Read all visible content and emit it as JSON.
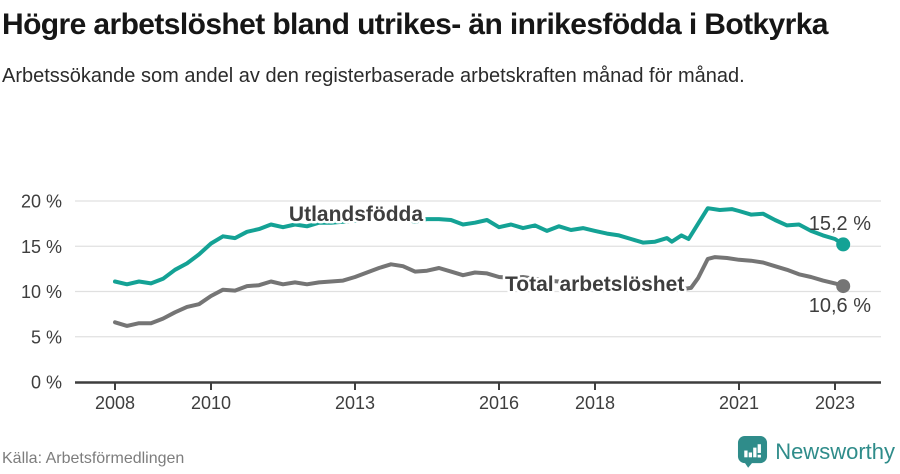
{
  "header": {
    "title": "Högre arbetslöshet bland utrikes- än inrikesfödda i Botkyrka",
    "subtitle": "Arbetssökande som andel av den registerbaserade arbetskraften månad för månad."
  },
  "footer": {
    "source": "Källa: Arbetsförmedlingen",
    "brand": "Newsworthy"
  },
  "colors": {
    "accent_teal": "#14a295",
    "series_gray": "#757575",
    "brand_teal": "#2f8c8a",
    "grid": "#e0e0e0",
    "axis": "#3e3e3e",
    "end_label_text": "#2e2e2e"
  },
  "chart_data": {
    "type": "line",
    "title": "Högre arbetslöshet bland utrikes- än inrikesfödda i Botkyrka",
    "subtitle": "Arbetssökande som andel av den registerbaserade arbetskraften månad för månad.",
    "source": "Källa: Arbetsförmedlingen",
    "x_unit": "decimal_year (monthly observations 2008 – early 2023)",
    "xlabel": "",
    "ylabel": "",
    "xlim": [
      2007.17,
      2023.94
    ],
    "ylim": [
      0,
      21.5
    ],
    "grid": "horizontal",
    "legend_position": "inline-labels",
    "x_ticks": [
      2008,
      2010,
      2013,
      2016,
      2018,
      2021,
      2023
    ],
    "y_ticks": [
      0,
      5,
      10,
      15,
      20
    ],
    "y_tick_labels": [
      "0 %",
      "5 %",
      "10 %",
      "15 %",
      "20 %"
    ],
    "series": [
      {
        "name": "Utlandsfödda",
        "color": "#14a295",
        "end_label": "15,2 %",
        "end_value": 15.2,
        "points": [
          [
            2008.0,
            11.1
          ],
          [
            2008.25,
            10.8
          ],
          [
            2008.5,
            11.1
          ],
          [
            2008.75,
            10.9
          ],
          [
            2009.0,
            11.4
          ],
          [
            2009.25,
            12.4
          ],
          [
            2009.5,
            13.1
          ],
          [
            2009.75,
            14.1
          ],
          [
            2010.0,
            15.3
          ],
          [
            2010.25,
            16.1
          ],
          [
            2010.5,
            15.9
          ],
          [
            2010.75,
            16.6
          ],
          [
            2011.0,
            16.9
          ],
          [
            2011.25,
            17.4
          ],
          [
            2011.5,
            17.1
          ],
          [
            2011.75,
            17.4
          ],
          [
            2012.0,
            17.2
          ],
          [
            2012.25,
            17.6
          ],
          [
            2012.5,
            17.6
          ],
          [
            2012.75,
            17.7
          ],
          [
            2013.0,
            17.8
          ],
          [
            2013.25,
            18.0
          ],
          [
            2013.5,
            18.2
          ],
          [
            2013.75,
            18.5
          ],
          [
            2014.0,
            18.1
          ],
          [
            2014.25,
            17.7
          ],
          [
            2014.5,
            18.0
          ],
          [
            2014.75,
            18.0
          ],
          [
            2015.0,
            17.9
          ],
          [
            2015.25,
            17.4
          ],
          [
            2015.5,
            17.6
          ],
          [
            2015.75,
            17.9
          ],
          [
            2016.0,
            17.1
          ],
          [
            2016.25,
            17.4
          ],
          [
            2016.5,
            17.0
          ],
          [
            2016.75,
            17.3
          ],
          [
            2017.0,
            16.7
          ],
          [
            2017.25,
            17.2
          ],
          [
            2017.5,
            16.8
          ],
          [
            2017.75,
            17.0
          ],
          [
            2018.0,
            16.7
          ],
          [
            2018.25,
            16.4
          ],
          [
            2018.5,
            16.2
          ],
          [
            2018.75,
            15.8
          ],
          [
            2019.0,
            15.4
          ],
          [
            2019.25,
            15.5
          ],
          [
            2019.5,
            15.9
          ],
          [
            2019.6,
            15.5
          ],
          [
            2019.8,
            16.2
          ],
          [
            2019.95,
            15.8
          ],
          [
            2020.15,
            17.5
          ],
          [
            2020.35,
            19.2
          ],
          [
            2020.6,
            19.0
          ],
          [
            2020.85,
            19.1
          ],
          [
            2021.0,
            18.9
          ],
          [
            2021.25,
            18.5
          ],
          [
            2021.5,
            18.6
          ],
          [
            2021.75,
            17.9
          ],
          [
            2022.0,
            17.3
          ],
          [
            2022.25,
            17.4
          ],
          [
            2022.5,
            16.7
          ],
          [
            2022.75,
            16.2
          ],
          [
            2023.0,
            15.8
          ],
          [
            2023.17,
            15.2
          ]
        ]
      },
      {
        "name": "Total arbetslöshet",
        "color": "#757575",
        "end_label": "10,6 %",
        "end_value": 10.6,
        "points": [
          [
            2008.0,
            6.6
          ],
          [
            2008.25,
            6.2
          ],
          [
            2008.5,
            6.5
          ],
          [
            2008.75,
            6.5
          ],
          [
            2009.0,
            7.0
          ],
          [
            2009.25,
            7.7
          ],
          [
            2009.5,
            8.3
          ],
          [
            2009.75,
            8.6
          ],
          [
            2010.0,
            9.5
          ],
          [
            2010.25,
            10.2
          ],
          [
            2010.5,
            10.1
          ],
          [
            2010.75,
            10.6
          ],
          [
            2011.0,
            10.7
          ],
          [
            2011.25,
            11.1
          ],
          [
            2011.5,
            10.8
          ],
          [
            2011.75,
            11.0
          ],
          [
            2012.0,
            10.8
          ],
          [
            2012.25,
            11.0
          ],
          [
            2012.5,
            11.1
          ],
          [
            2012.75,
            11.2
          ],
          [
            2013.0,
            11.6
          ],
          [
            2013.25,
            12.1
          ],
          [
            2013.5,
            12.6
          ],
          [
            2013.75,
            13.0
          ],
          [
            2014.0,
            12.8
          ],
          [
            2014.25,
            12.2
          ],
          [
            2014.5,
            12.3
          ],
          [
            2014.75,
            12.6
          ],
          [
            2015.0,
            12.2
          ],
          [
            2015.25,
            11.8
          ],
          [
            2015.5,
            12.1
          ],
          [
            2015.75,
            12.0
          ],
          [
            2016.0,
            11.6
          ],
          [
            2016.25,
            11.5
          ],
          [
            2016.5,
            11.6
          ],
          [
            2016.75,
            11.4
          ],
          [
            2017.0,
            11.2
          ],
          [
            2017.25,
            11.1
          ],
          [
            2017.5,
            11.0
          ],
          [
            2017.75,
            10.9
          ],
          [
            2018.0,
            10.8
          ],
          [
            2018.25,
            10.6
          ],
          [
            2018.5,
            10.5
          ],
          [
            2018.75,
            10.4
          ],
          [
            2019.0,
            10.3
          ],
          [
            2019.25,
            10.3
          ],
          [
            2019.5,
            10.4
          ],
          [
            2019.75,
            10.2
          ],
          [
            2020.0,
            10.4
          ],
          [
            2020.15,
            11.5
          ],
          [
            2020.35,
            13.6
          ],
          [
            2020.5,
            13.8
          ],
          [
            2020.75,
            13.7
          ],
          [
            2021.0,
            13.5
          ],
          [
            2021.25,
            13.4
          ],
          [
            2021.5,
            13.2
          ],
          [
            2021.75,
            12.8
          ],
          [
            2022.0,
            12.4
          ],
          [
            2022.25,
            11.9
          ],
          [
            2022.5,
            11.6
          ],
          [
            2022.75,
            11.2
          ],
          [
            2023.0,
            10.9
          ],
          [
            2023.17,
            10.6
          ]
        ]
      }
    ]
  }
}
